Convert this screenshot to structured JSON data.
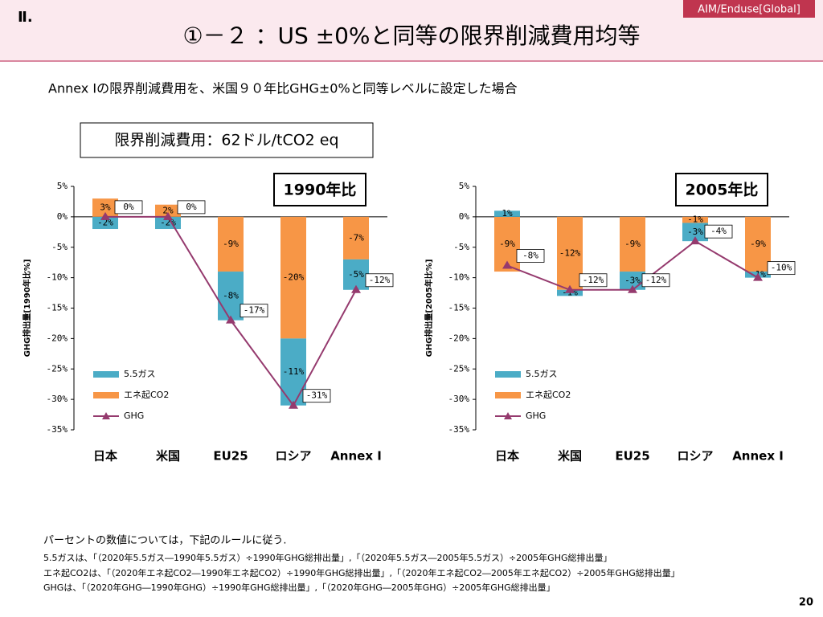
{
  "header": {
    "section": "Ⅱ.",
    "title": "①－２ ：US ±0%と同等の限界削減費用均等",
    "tag": "AIM/Enduse[Global]"
  },
  "subtitle": "Annex Iの限界削減費用を、米国９０年比GHG±0%と同等レベルに設定した場合",
  "cost_box": "限界削減費用：62ドル/tCO2 eq",
  "chart_data": [
    {
      "type": "bar",
      "stacked": true,
      "title": "1990年比",
      "y_label": "GHG排出量[1990年比%]",
      "categories": [
        "日本",
        "米国",
        "EU25",
        "ロシア",
        "Annex I"
      ],
      "series": [
        {
          "name": "5.5ガス",
          "color": "#4bacc6",
          "values": [
            -2,
            -2,
            -8,
            -11,
            -5
          ],
          "value_labels": [
            "-2%",
            "-2%",
            "-8%",
            "-11%",
            "-5%"
          ]
        },
        {
          "name": "エネ起CO2",
          "color": "#f79646",
          "values": [
            3,
            2,
            -9,
            -20,
            -7
          ],
          "value_labels": [
            "3%",
            "2%",
            "-9%",
            "-20%",
            "-7%"
          ]
        },
        {
          "name": "GHG",
          "type": "line",
          "color": "#953a6e",
          "values": [
            0,
            0,
            -17,
            -31,
            -12
          ],
          "value_labels": [
            "0%",
            "0%",
            "-17%",
            "-31%",
            "-12%"
          ]
        }
      ],
      "ylim": [
        -35,
        5
      ],
      "yticks": [
        {
          "value": 5,
          "label": "5%"
        },
        {
          "value": 0,
          "label": "0%"
        },
        {
          "value": -5,
          "label": "-5%"
        },
        {
          "value": -10,
          "label": "-10%"
        },
        {
          "value": -15,
          "label": "-15%"
        },
        {
          "value": -20,
          "label": "-20%"
        },
        {
          "value": -25,
          "label": "-25%"
        },
        {
          "value": -30,
          "label": "-30%"
        },
        {
          "value": -35,
          "label": "-35%"
        }
      ],
      "legend": "lower left"
    },
    {
      "type": "bar",
      "stacked": true,
      "title": "2005年比",
      "y_label": "GHG排出量[2005年比%]",
      "categories": [
        "日本",
        "米国",
        "EU25",
        "ロシア",
        "Annex I"
      ],
      "series": [
        {
          "name": "5.5ガス",
          "color": "#4bacc6",
          "values": [
            1,
            -1,
            -3,
            -3,
            -1
          ],
          "value_labels": [
            "1%",
            "-1%",
            "-3%",
            "-3%",
            "-1%"
          ]
        },
        {
          "name": "エネ起CO2",
          "color": "#f79646",
          "values": [
            -9,
            -12,
            -9,
            -1,
            -9
          ],
          "value_labels": [
            "-9%",
            "-12%",
            "-9%",
            "-1%",
            "-9%"
          ]
        },
        {
          "name": "GHG",
          "type": "line",
          "color": "#953a6e",
          "values": [
            -8,
            -12,
            -12,
            -4,
            -10
          ],
          "value_labels": [
            "-8%",
            "-12%",
            "-12%",
            "-4%",
            "-10%"
          ]
        }
      ],
      "ylim": [
        -35,
        5
      ],
      "yticks": [
        {
          "value": 5,
          "label": "5%"
        },
        {
          "value": 0,
          "label": "0%"
        },
        {
          "value": -5,
          "label": "-5%"
        },
        {
          "value": -10,
          "label": "-10%"
        },
        {
          "value": -15,
          "label": "-15%"
        },
        {
          "value": -20,
          "label": "-20%"
        },
        {
          "value": -25,
          "label": "-25%"
        },
        {
          "value": -30,
          "label": "-30%"
        },
        {
          "value": -35,
          "label": "-35%"
        }
      ],
      "legend": "lower left"
    }
  ],
  "notes": [
    "パーセントの数値については，下記のルールに従う.",
    "5.5ガスは、「（2020年5.5ガス―1990年5.5ガス）÷1990年GHG総排出量」,「（2020年5.5ガス―2005年5.5ガス）÷2005年GHG総排出量」",
    "エネ起CO2は、「（2020年エネ起CO2―1990年エネ起CO2）÷1990年GHG総排出量」,「（2020年エネ起CO2―2005年エネ起CO2）÷2005年GHG総排出量」",
    "GHGは、「（2020年GHG―1990年GHG）÷1990年GHG総排出量」,「（2020年GHG―2005年GHG）÷2005年GHG総排出量」"
  ],
  "page_number": "20"
}
